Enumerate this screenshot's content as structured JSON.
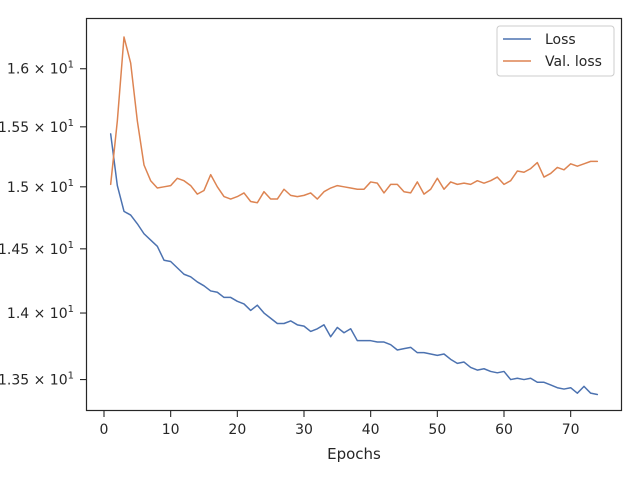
{
  "chart_data": {
    "type": "line",
    "xlabel": "Epochs",
    "ylabel": "",
    "xlim": [
      -2.7,
      77.7
    ],
    "ylim": [
      13.27,
      16.45
    ],
    "y_scale": "log",
    "grid": false,
    "legend_position": "top-right",
    "x_ticks": [
      0,
      10,
      20,
      30,
      40,
      50,
      60,
      70
    ],
    "x_tick_labels": [
      "0",
      "10",
      "20",
      "30",
      "40",
      "50",
      "60",
      "70"
    ],
    "y_ticks": [
      13.5,
      14.0,
      14.5,
      15.0,
      15.5,
      16.0
    ],
    "y_tick_labels": [
      {
        "mant": "1.35",
        "exp": "1"
      },
      {
        "mant": "1.4",
        "exp": "1"
      },
      {
        "mant": "1.45",
        "exp": "1"
      },
      {
        "mant": "1.5",
        "exp": "1"
      },
      {
        "mant": "1.55",
        "exp": "1"
      },
      {
        "mant": "1.6",
        "exp": "1"
      }
    ],
    "series": [
      {
        "name": "Loss",
        "color": "#4c72b0",
        "x": [
          1,
          2,
          3,
          4,
          5,
          6,
          7,
          8,
          9,
          10,
          11,
          12,
          13,
          14,
          15,
          16,
          17,
          18,
          19,
          20,
          21,
          22,
          23,
          24,
          25,
          26,
          27,
          28,
          29,
          30,
          31,
          32,
          33,
          34,
          35,
          36,
          37,
          38,
          39,
          40,
          41,
          42,
          43,
          44,
          45,
          46,
          47,
          48,
          49,
          50,
          51,
          52,
          53,
          54,
          55,
          56,
          57,
          58,
          59,
          60,
          61,
          62,
          63,
          64,
          65,
          66,
          67,
          68,
          69,
          70,
          71,
          72,
          73,
          74
        ],
        "values": [
          15.44,
          15.01,
          14.8,
          14.77,
          14.7,
          14.62,
          14.57,
          14.52,
          14.41,
          14.4,
          14.35,
          14.3,
          14.28,
          14.24,
          14.21,
          14.17,
          14.16,
          14.12,
          14.12,
          14.09,
          14.07,
          14.02,
          14.06,
          14.0,
          13.96,
          13.92,
          13.92,
          13.94,
          13.91,
          13.9,
          13.86,
          13.88,
          13.91,
          13.82,
          13.89,
          13.85,
          13.88,
          13.79,
          13.79,
          13.79,
          13.78,
          13.78,
          13.76,
          13.72,
          13.73,
          13.74,
          13.7,
          13.7,
          13.69,
          13.68,
          13.69,
          13.65,
          13.62,
          13.63,
          13.59,
          13.57,
          13.58,
          13.56,
          13.55,
          13.56,
          13.5,
          13.51,
          13.5,
          13.51,
          13.48,
          13.48,
          13.46,
          13.44,
          13.43,
          13.44,
          13.4,
          13.45,
          13.4,
          13.39
        ]
      },
      {
        "name": "Val. loss",
        "color": "#dd8452",
        "x": [
          1,
          2,
          3,
          4,
          5,
          6,
          7,
          8,
          9,
          10,
          11,
          12,
          13,
          14,
          15,
          16,
          17,
          18,
          19,
          20,
          21,
          22,
          23,
          24,
          25,
          26,
          27,
          28,
          29,
          30,
          31,
          32,
          33,
          34,
          35,
          36,
          37,
          38,
          39,
          40,
          41,
          42,
          43,
          44,
          45,
          46,
          47,
          48,
          49,
          50,
          51,
          52,
          53,
          54,
          55,
          56,
          57,
          58,
          59,
          60,
          61,
          62,
          63,
          64,
          65,
          66,
          67,
          68,
          69,
          70,
          71,
          72,
          73,
          74
        ],
        "values": [
          15.02,
          15.55,
          16.28,
          16.05,
          15.55,
          15.18,
          15.05,
          14.99,
          15.0,
          15.01,
          15.07,
          15.05,
          15.01,
          14.94,
          14.97,
          15.1,
          15.0,
          14.92,
          14.9,
          14.92,
          14.95,
          14.88,
          14.87,
          14.96,
          14.9,
          14.9,
          14.98,
          14.93,
          14.92,
          14.93,
          14.95,
          14.9,
          14.96,
          14.99,
          15.01,
          15.0,
          14.99,
          14.98,
          14.98,
          15.04,
          15.03,
          14.95,
          15.02,
          15.02,
          14.96,
          14.95,
          15.04,
          14.94,
          14.98,
          15.07,
          14.98,
          15.04,
          15.02,
          15.03,
          15.02,
          15.05,
          15.03,
          15.05,
          15.08,
          15.02,
          15.05,
          15.13,
          15.12,
          15.15,
          15.2,
          15.08,
          15.11,
          15.16,
          15.14,
          15.19,
          15.17,
          15.19,
          15.21,
          15.21
        ]
      }
    ]
  }
}
